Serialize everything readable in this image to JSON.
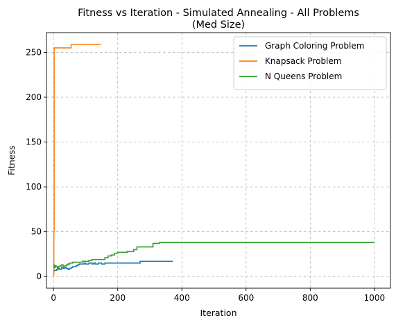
{
  "chart_data": {
    "type": "line",
    "title": "Fitness vs Iteration - Simulated Annealing - All Problems",
    "subtitle": "(Med Size)",
    "xlabel": "Iteration",
    "ylabel": "Fitness",
    "xlim": [
      -22,
      1050
    ],
    "ylim": [
      -13,
      272
    ],
    "xticks": [
      0,
      200,
      400,
      600,
      800,
      1000
    ],
    "yticks": [
      0,
      50,
      100,
      150,
      200,
      250
    ],
    "grid": true,
    "legend_position": "top-right",
    "series": [
      {
        "name": "Graph Coloring Problem",
        "color": "#1f77b4",
        "step": true,
        "x": [
          0,
          2,
          5,
          10,
          15,
          20,
          25,
          30,
          35,
          40,
          45,
          50,
          55,
          60,
          65,
          70,
          75,
          80,
          85,
          90,
          95,
          100,
          110,
          120,
          125,
          130,
          140,
          150,
          160,
          200,
          250,
          270,
          300,
          340,
          372
        ],
        "y": [
          6,
          7,
          7,
          8,
          9,
          8,
          10,
          9,
          10,
          9,
          8,
          9,
          10,
          11,
          11,
          12,
          13,
          14,
          14,
          14,
          15,
          14,
          15,
          14,
          15,
          14,
          15,
          14,
          15,
          15,
          15,
          17,
          17,
          17,
          17
        ]
      },
      {
        "name": "Knapsack Problem",
        "color": "#ff7f0e",
        "step": true,
        "x": [
          0,
          1,
          2,
          3,
          50,
          55,
          148
        ],
        "y": [
          1,
          50,
          255,
          255,
          255,
          259,
          259
        ]
      },
      {
        "name": "N Queens Problem",
        "color": "#2ca02c",
        "step": true,
        "x": [
          0,
          2,
          5,
          8,
          12,
          15,
          20,
          25,
          30,
          35,
          40,
          45,
          50,
          60,
          75,
          90,
          100,
          110,
          120,
          130,
          150,
          160,
          170,
          180,
          190,
          200,
          230,
          250,
          260,
          310,
          330,
          400,
          500,
          600,
          700,
          800,
          900,
          1000
        ],
        "y": [
          13,
          10,
          12,
          11,
          9,
          11,
          12,
          13,
          10,
          12,
          13,
          14,
          15,
          16,
          16,
          17,
          17,
          18,
          19,
          19,
          19,
          21,
          23,
          24,
          26,
          27,
          28,
          30,
          33,
          37,
          38,
          38,
          38,
          38,
          38,
          38,
          38,
          38
        ]
      }
    ]
  }
}
